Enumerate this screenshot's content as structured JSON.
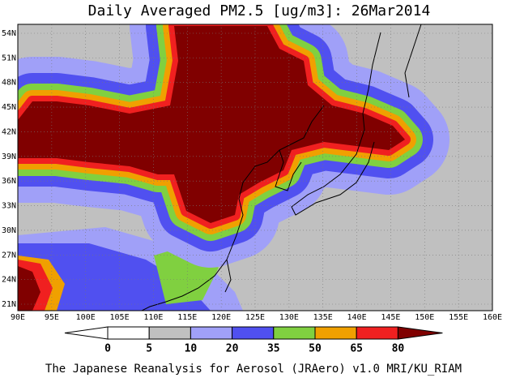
{
  "title": "Daily Averaged PM2.5 [ug/m3]: 26Mar2014",
  "map": {
    "lon_labels": [
      "90E",
      "95E",
      "100E",
      "105E",
      "110E",
      "115E",
      "120E",
      "125E",
      "130E",
      "135E",
      "140E",
      "145E",
      "150E",
      "155E",
      "160E"
    ],
    "lat_labels": [
      "21N",
      "24N",
      "27N",
      "30N",
      "33N",
      "36N",
      "39N",
      "42N",
      "45N",
      "48N",
      "51N",
      "54N"
    ]
  },
  "colorbar": {
    "levels": [
      0,
      5,
      10,
      20,
      35,
      50,
      65,
      80
    ],
    "colors": [
      "#ffffff",
      "#ffffff",
      "#c0c0c0",
      "#a0a0f8",
      "#5050f0",
      "#80d040",
      "#f0a000",
      "#f02020",
      "#800000"
    ]
  },
  "footer": "The Japanese Reanalysis for Aerosol (JRAero) v1.0 MRI/KU_RIAM"
}
